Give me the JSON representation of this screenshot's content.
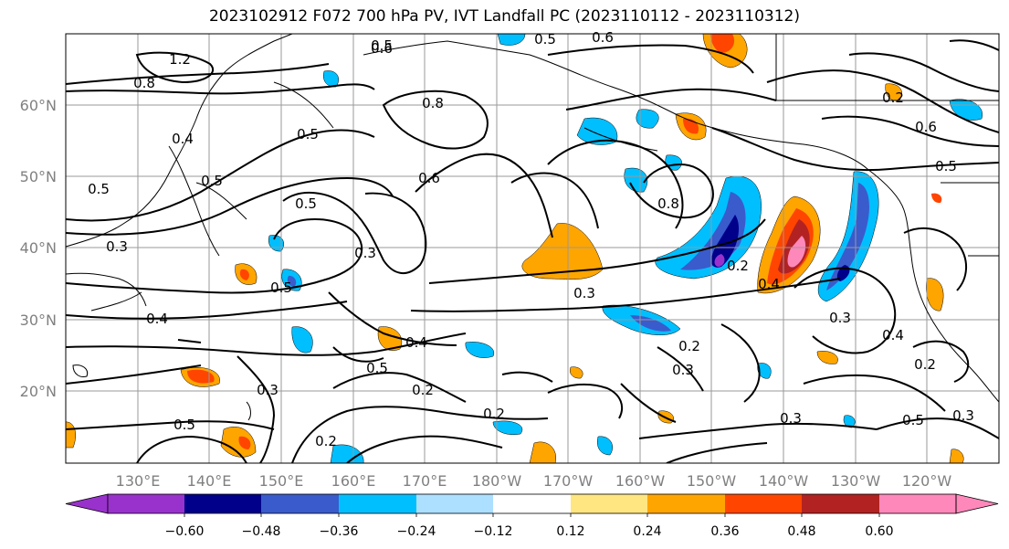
{
  "title": "2023102912 F072 700 hPa PV, IVT Landfall PC (2023110112 - 2023110312)",
  "map": {
    "lat_labels": [
      "60°N",
      "50°N",
      "40°N",
      "30°N",
      "20°N"
    ],
    "lon_labels": [
      "130°E",
      "140°E",
      "150°E",
      "160°E",
      "170°E",
      "180°W",
      "170°W",
      "160°W",
      "150°W",
      "140°W",
      "130°W",
      "120°W"
    ],
    "contour_labels": [
      "1.2",
      "0.8",
      "0.4",
      "0.5",
      "0.6",
      "0.5",
      "0.8",
      "0.5",
      "0.5",
      "0.6",
      "0.5",
      "0.3",
      "0.5",
      "0.6",
      "0.8",
      "0.6",
      "0.5",
      "0.4",
      "0.5",
      "0.3",
      "0.3",
      "0.4",
      "0.2",
      "0.3",
      "0.4",
      "0.3",
      "0.2",
      "0.5",
      "0.2",
      "0.3",
      "0.2",
      "0.2",
      "0.5",
      "0.2",
      "0.4",
      "0.3",
      "0.2",
      "0.5",
      "0.3"
    ]
  },
  "colorbar": {
    "ticks": [
      "−0.60",
      "−0.48",
      "−0.36",
      "−0.24",
      "−0.12",
      "0.12",
      "0.24",
      "0.36",
      "0.48",
      "0.60"
    ],
    "colors": [
      "#9932CC",
      "#00008B",
      "#3A5BCC",
      "#00BFFF",
      "#ADDFFF",
      "#FFFFFF",
      "#FFE680",
      "#FFA500",
      "#FF4500",
      "#B22222",
      "#FF88BB"
    ]
  }
}
